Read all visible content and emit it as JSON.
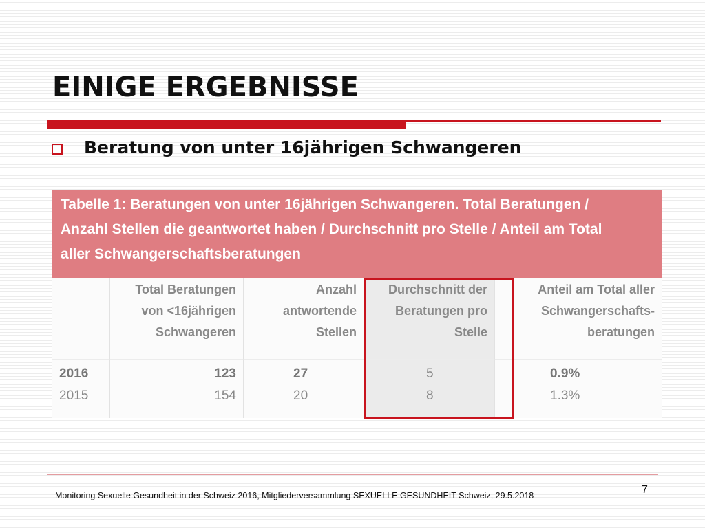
{
  "slide": {
    "title": "EINIGE ERGEBNISSE",
    "bullet": "Beratung von unter 16jährigen Schwangeren",
    "page_number": "7",
    "footer": "Monitoring Sexuelle Gesundheit in der Schweiz 2016, Mitgliederversammlung SEXUELLE GESUNDHEIT Schweiz, 29.5.2018",
    "colors": {
      "accent": "#c8141e",
      "caption_bg": "#df7d82"
    }
  },
  "table": {
    "caption_lines": [
      "Tabelle 1: Beratungen von unter 16jährigen Schwangeren. Total Beratungen /",
      "Anzahl Stellen die geantwortet haben / Durchschnitt pro Stelle / Anteil am Total",
      "aller Schwangerschaftsberatungen"
    ],
    "headers": [
      {
        "lines": [
          "",
          "",
          ""
        ]
      },
      {
        "lines": [
          "Total Beratungen",
          "von <16jährigen",
          "Schwangeren"
        ]
      },
      {
        "lines": [
          "Anzahl",
          "antwortende",
          "Stellen"
        ]
      },
      {
        "lines": [
          "Durchschnitt der",
          "Beratungen pro",
          "Stelle"
        ]
      },
      {
        "lines": [
          "Anteil am Total aller",
          "Schwangerschafts-",
          "beratungen"
        ]
      }
    ],
    "rows": [
      {
        "year": "2016",
        "total": "123",
        "stellen": "27",
        "durchschnitt": "5",
        "anteil": "0.9%"
      },
      {
        "year": "2015",
        "total": "154",
        "stellen": "20",
        "durchschnitt": "8",
        "anteil": "1.3%"
      }
    ]
  }
}
